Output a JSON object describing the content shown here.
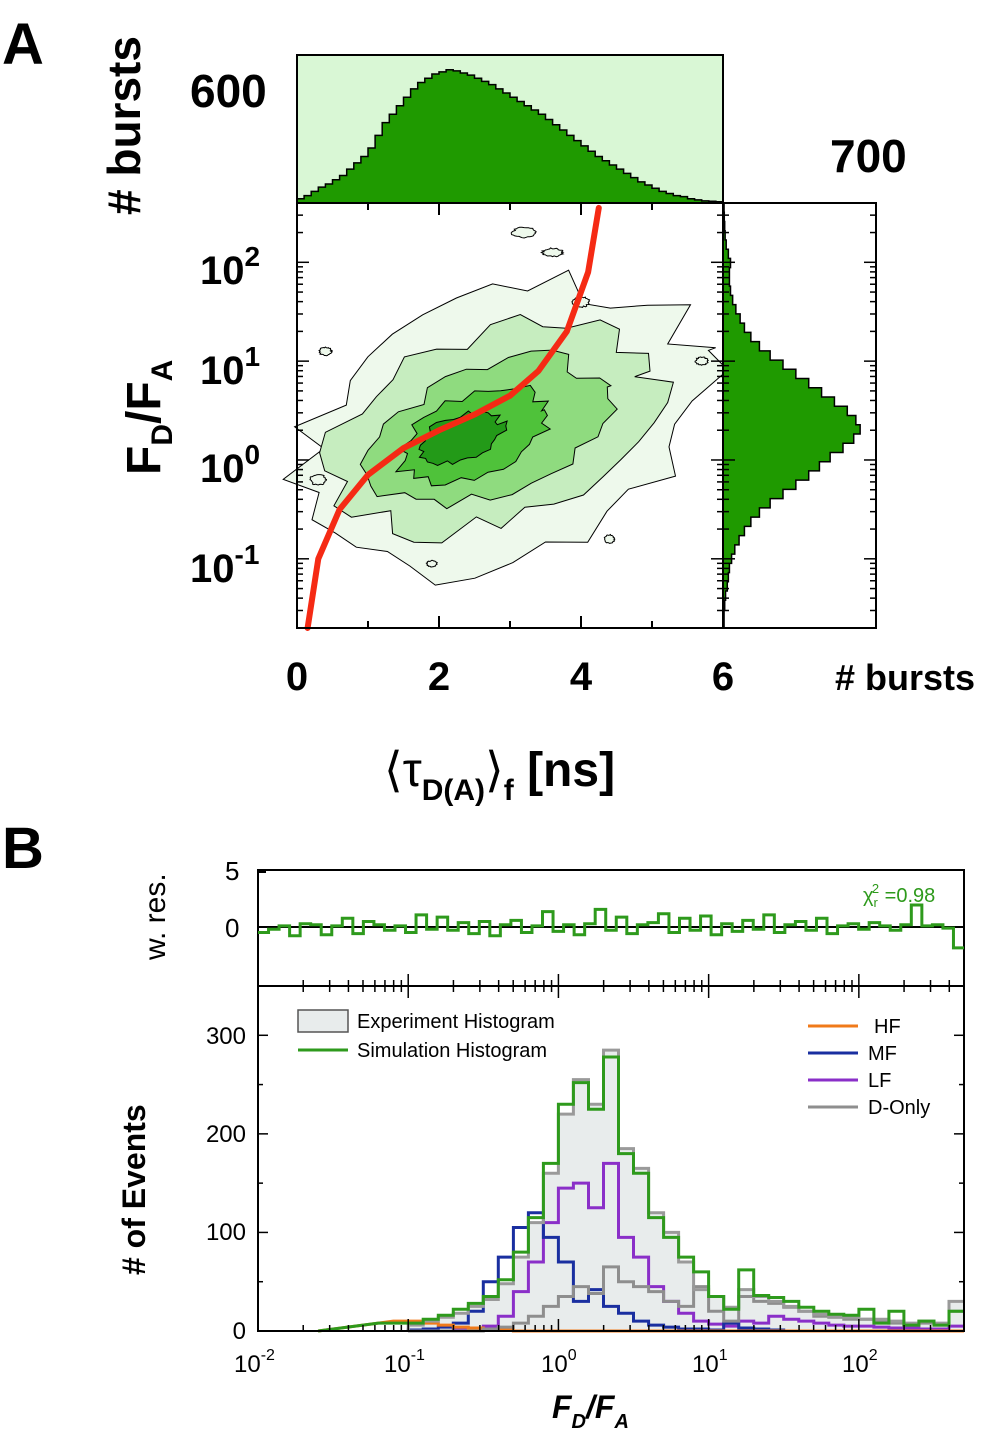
{
  "panels": {
    "a": {
      "label": "A"
    },
    "b": {
      "label": "B"
    }
  },
  "chart_data": [
    {
      "id": "A-top-histogram",
      "type": "bar",
      "title": "",
      "ylabel": "# bursts",
      "ymax_label": "600",
      "xlim": [
        0,
        6
      ],
      "ylim": [
        0,
        700
      ],
      "fill_color": "#1f9a00",
      "background_color": "#d9f7d5",
      "values": [
        20,
        35,
        55,
        75,
        90,
        110,
        130,
        160,
        190,
        220,
        260,
        320,
        380,
        420,
        460,
        500,
        540,
        570,
        590,
        610,
        620,
        630,
        625,
        615,
        605,
        590,
        575,
        560,
        540,
        520,
        500,
        480,
        460,
        440,
        420,
        395,
        370,
        345,
        320,
        295,
        270,
        245,
        220,
        200,
        180,
        160,
        140,
        120,
        100,
        85,
        70,
        55,
        45,
        35,
        30,
        20,
        15,
        10,
        8,
        6
      ]
    },
    {
      "id": "A-right-histogram",
      "type": "bar",
      "orientation": "horizontal",
      "xlabel": "# bursts",
      "xmax_label": "700",
      "xlim": [
        0,
        700
      ],
      "ylim_log10": [
        -1.7,
        2.6
      ],
      "fill_color": "#1f9a00",
      "values": [
        5,
        5,
        8,
        12,
        20,
        25,
        30,
        40,
        55,
        75,
        100,
        130,
        170,
        220,
        280,
        340,
        400,
        450,
        500,
        560,
        610,
        640,
        620,
        580,
        520,
        460,
        400,
        340,
        280,
        220,
        170,
        130,
        100,
        80,
        60,
        45,
        35,
        30,
        30,
        35,
        25,
        15,
        10,
        8,
        6,
        5
      ]
    },
    {
      "id": "A-2D",
      "type": "heatmap",
      "xlabel": "⟨τD(A)⟩f [ns]",
      "ylabel": "FD/FA",
      "xlim": [
        0,
        6
      ],
      "ylim_log10": [
        -1.7,
        2.6
      ],
      "x_ticks": [
        "0",
        "2",
        "4",
        "6"
      ],
      "y_ticks": [
        {
          "base": "10",
          "exp": "2"
        },
        {
          "base": "10",
          "exp": "1"
        },
        {
          "base": "10",
          "exp": "0"
        },
        {
          "base": "10",
          "exp": "-1"
        }
      ],
      "contour_colors": [
        "#eef9ec",
        "#c6edbf",
        "#8fdb7f",
        "#4fc23a",
        "#239a18"
      ],
      "curve_color": "#f52a14",
      "static_fret_line": {
        "x": [
          0.15,
          0.3,
          0.6,
          1.0,
          1.5,
          2.0,
          2.5,
          3.0,
          3.4,
          3.8,
          4.1,
          4.25
        ],
        "log10_y": [
          -1.7,
          -1.0,
          -0.5,
          -0.15,
          0.12,
          0.3,
          0.46,
          0.65,
          0.9,
          1.3,
          1.9,
          2.55
        ]
      }
    },
    {
      "id": "B-residuals",
      "type": "line",
      "ylabel": "w. res.",
      "yticks": [
        "5",
        "0"
      ],
      "ylim": [
        -5,
        5
      ],
      "xlim_log10": [
        -2,
        2.7
      ],
      "annotation": {
        "chi": "χ",
        "sub": "r",
        "sup": "2",
        "text": " =0.98"
      },
      "color": "#2e9a1c",
      "values": [
        -0.5,
        -0.2,
        0.1,
        -0.8,
        0.3,
        0.2,
        -0.7,
        0.1,
        0.8,
        -0.6,
        0.5,
        0.2,
        -0.3,
        0.1,
        -0.5,
        1.1,
        -0.2,
        0.9,
        -0.3,
        0.4,
        -0.6,
        0.5,
        -0.8,
        0.2,
        0.6,
        -0.5,
        0.1,
        1.4,
        -0.4,
        0.2,
        -0.7,
        0.3,
        1.6,
        -0.3,
        0.9,
        -0.6,
        0.2,
        0.4,
        1.2,
        -0.5,
        0.8,
        -0.3,
        1.0,
        -0.7,
        0.3,
        -0.4,
        0.6,
        -0.2,
        1.1,
        -0.5,
        0.2,
        0.5,
        -0.3,
        0.8,
        -0.6,
        0.1,
        0.3,
        -0.2,
        0.4,
        0.1,
        -0.3,
        0.2,
        2.0,
        0.1,
        0.2,
        -0.1,
        -1.9
      ]
    },
    {
      "id": "B-histogram",
      "type": "line",
      "xlabel": "FD/FA",
      "ylabel": "# of Events",
      "xlim_log10": [
        -2,
        2.7
      ],
      "ylim": [
        0,
        350
      ],
      "x_ticks": [
        {
          "base": "10",
          "exp": "-2"
        },
        {
          "base": "10",
          "exp": "-1"
        },
        {
          "base": "10",
          "exp": "0"
        },
        {
          "base": "10",
          "exp": "1"
        },
        {
          "base": "10",
          "exp": "2"
        }
      ],
      "y_ticks": [
        "0",
        "100",
        "200",
        "300"
      ],
      "legend_left": [
        {
          "label": "Experiment Histogram",
          "color": "#9a9a9a",
          "fill": "#e8ecec"
        },
        {
          "label": "Simulation Histogram",
          "color": "#2e9a1c"
        }
      ],
      "legend_right": [
        {
          "label": "HF",
          "color": "#f07a1a"
        },
        {
          "label": "MF",
          "color": "#1a2fa0"
        },
        {
          "label": "LF",
          "color": "#8a2fc8"
        },
        {
          "label": "D-Only",
          "color": "#8e8e8e"
        }
      ],
      "bin_edges_log10": [
        -1.0,
        -0.9,
        -0.8,
        -0.7,
        -0.6,
        -0.5,
        -0.4,
        -0.3,
        -0.2,
        -0.1,
        0.0,
        0.1,
        0.2,
        0.3,
        0.4,
        0.5,
        0.6,
        0.7,
        0.8,
        0.9,
        1.0,
        1.1,
        1.2,
        1.3,
        1.4,
        1.5,
        1.6,
        1.7,
        1.8,
        1.9,
        2.0,
        2.1,
        2.2,
        2.3,
        2.4,
        2.5,
        2.6,
        2.7
      ],
      "series": [
        {
          "name": "Experiment Histogram",
          "values": [
            6,
            10,
            14,
            18,
            25,
            32,
            48,
            75,
            110,
            160,
            220,
            255,
            230,
            285,
            185,
            165,
            120,
            100,
            70,
            42,
            35,
            24,
            42,
            35,
            30,
            25,
            20,
            17,
            15,
            14,
            12,
            12,
            10,
            8,
            10,
            8,
            30
          ]
        },
        {
          "name": "Simulation Histogram",
          "values": [
            8,
            12,
            16,
            22,
            28,
            35,
            52,
            80,
            115,
            170,
            230,
            252,
            225,
            278,
            180,
            160,
            115,
            95,
            75,
            60,
            35,
            22,
            62,
            36,
            34,
            30,
            24,
            20,
            17,
            16,
            22,
            8,
            20,
            6,
            10,
            6,
            20
          ]
        },
        {
          "name": "HF",
          "values": [
            10,
            8,
            6,
            4,
            3,
            2,
            1,
            0,
            0,
            0,
            0,
            0,
            0,
            0,
            0,
            0,
            0,
            0,
            0,
            0,
            0,
            0,
            0,
            0,
            0,
            0,
            0,
            0,
            0,
            0,
            0,
            0,
            0,
            0,
            0,
            0,
            0
          ]
        },
        {
          "name": "MF",
          "values": [
            1,
            2,
            4,
            8,
            20,
            50,
            75,
            105,
            120,
            95,
            70,
            30,
            42,
            25,
            18,
            10,
            6,
            4,
            2,
            2,
            1,
            8,
            3,
            2,
            1,
            0,
            0,
            0,
            0,
            0,
            0,
            0,
            0,
            0,
            0,
            0,
            0
          ]
        },
        {
          "name": "LF",
          "values": [
            0,
            0,
            0,
            1,
            2,
            5,
            15,
            40,
            70,
            110,
            145,
            150,
            125,
            170,
            95,
            75,
            45,
            30,
            18,
            10,
            7,
            5,
            10,
            8,
            15,
            12,
            10,
            8,
            6,
            5,
            5,
            4,
            3,
            3,
            2,
            2,
            5
          ]
        },
        {
          "name": "D-Only",
          "values": [
            0,
            0,
            0,
            0,
            0,
            2,
            4,
            8,
            15,
            25,
            35,
            45,
            38,
            65,
            50,
            45,
            40,
            30,
            25,
            45,
            20,
            10,
            35,
            30,
            28,
            24,
            20,
            15,
            14,
            12,
            12,
            10,
            8,
            6,
            8,
            6,
            20
          ]
        }
      ]
    }
  ]
}
